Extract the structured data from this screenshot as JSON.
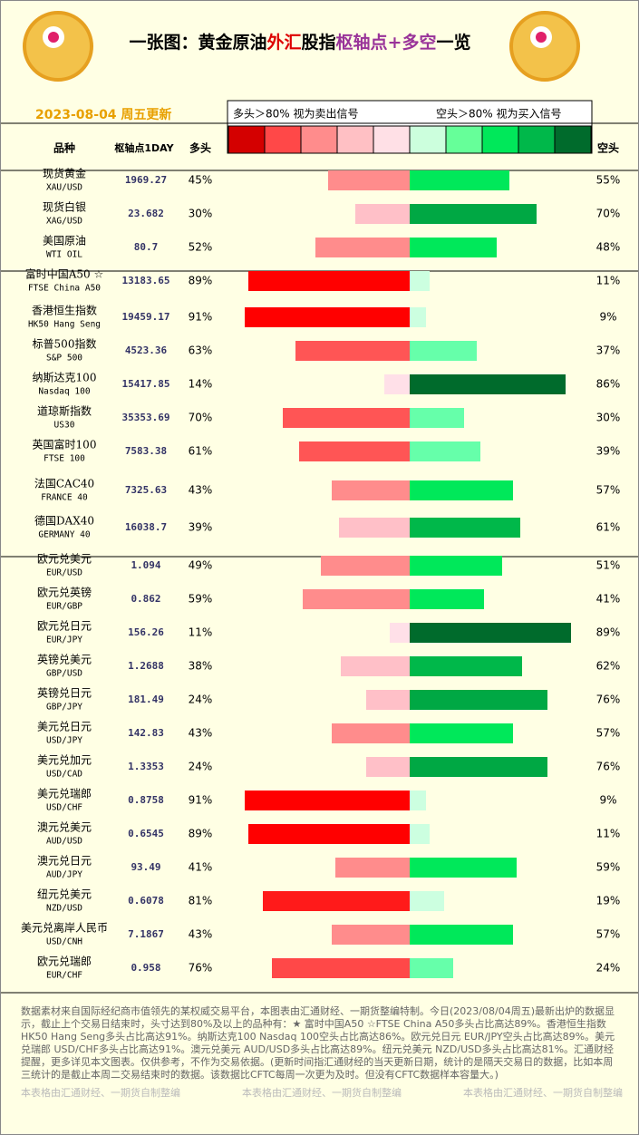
{
  "header": {
    "title_parts": [
      {
        "text": "一张图：黄金原油",
        "color": "#000000"
      },
      {
        "text": "外汇",
        "color": "#dd0000"
      },
      {
        "text": "股指",
        "color": "#000000"
      },
      {
        "text": "枢轴点+多空",
        "color": "#993399"
      },
      {
        "text": "一览",
        "color": "#000000"
      }
    ],
    "date": "2023-08-04 周五更新",
    "legend_long": "多头＞80% 视为卖出信号",
    "legend_short": "空头＞80% 视为买入信号",
    "legend_colors": [
      "#d40000",
      "#ff4848",
      "#ff8c8c",
      "#ffc0c4",
      "#ffe0e6",
      "#ccffdd",
      "#66ff99",
      "#00e85a",
      "#00b84a",
      "#006b2c"
    ],
    "col_name": "品种",
    "col_pivot": "枢轴点1DAY",
    "col_long": "多头",
    "col_short": "空头"
  },
  "rows": [
    {
      "name": "现货黄金",
      "code": "XAU/USD",
      "pivot": 1969.27,
      "long": 45,
      "long_label": "45%",
      "long_color": "#ff8c8c",
      "short": 55,
      "short_label": "55%",
      "short_color": "#00e85a"
    },
    {
      "name": "现货白银",
      "code": "XAG/USD",
      "pivot": 23.682,
      "long": 30,
      "long_label": "30%",
      "long_color": "#ffc0c8",
      "short": 70,
      "short_label": "70%",
      "short_color": "#00a844"
    },
    {
      "name": "美国原油",
      "code": "WTI OIL",
      "pivot": 80.7,
      "long": 52,
      "long_label": "52%",
      "long_color": "#ff8c8c",
      "short": 48,
      "short_label": "48%",
      "short_color": "#00e85a"
    },
    {
      "name": "富时中国A50 ☆",
      "code": "FTSE China A50",
      "pivot": 13183.65,
      "long": 89,
      "long_label": "89%",
      "long_color": "#ff0000",
      "short": 11,
      "short_label": "11%",
      "short_color": "#ccffe0"
    },
    {
      "name": "香港恒生指数",
      "code": "HK50 Hang Seng",
      "pivot": 19459.17,
      "long": 91,
      "long_label": "91%",
      "long_color": "#ff0000",
      "short": 9,
      "short_label": "9%",
      "short_color": "#ccffe0"
    },
    {
      "name": "标普500指数",
      "code": "S&P 500",
      "pivot": 4523.36,
      "long": 63,
      "long_label": "63%",
      "long_color": "#ff5555",
      "short": 37,
      "short_label": "37%",
      "short_color": "#66ffaa"
    },
    {
      "name": "纳斯达克100",
      "code": "Nasdaq 100",
      "pivot": 15417.85,
      "long": 14,
      "long_label": "14%",
      "long_color": "#ffe0e8",
      "short": 86,
      "short_label": "86%",
      "short_color": "#006b2c"
    },
    {
      "name": "道琼斯指数",
      "code": "US30",
      "pivot": 35353.69,
      "long": 70,
      "long_label": "70%",
      "long_color": "#ff5555",
      "short": 30,
      "short_label": "30%",
      "short_color": "#66ffaa"
    },
    {
      "name": "英国富时100",
      "code": "FTSE 100",
      "pivot": 7583.38,
      "long": 61,
      "long_label": "61%",
      "long_color": "#ff5555",
      "short": 39,
      "short_label": "39%",
      "short_color": "#66ffaa"
    },
    {
      "name": "法国CAC40",
      "code": "FRANCE 40",
      "pivot": 7325.63,
      "long": 43,
      "long_label": "43%",
      "long_color": "#ff8c8c",
      "short": 57,
      "short_label": "57%",
      "short_color": "#00e85a"
    },
    {
      "name": "德国DAX40",
      "code": "GERMANY 40",
      "pivot": 16038.7,
      "long": 39,
      "long_label": "39%",
      "long_color": "#ffc0c8",
      "short": 61,
      "short_label": "61%",
      "short_color": "#00b84a"
    },
    {
      "name": "欧元兑美元",
      "code": "EUR/USD",
      "pivot": 1.094,
      "long": 49,
      "long_label": "49%",
      "long_color": "#ff8c8c",
      "short": 51,
      "short_label": "51%",
      "short_color": "#00e85a"
    },
    {
      "name": "欧元兑英镑",
      "code": "EUR/GBP",
      "pivot": 0.862,
      "long": 59,
      "long_label": "59%",
      "long_color": "#ff8c8c",
      "short": 41,
      "short_label": "41%",
      "short_color": "#00e85a"
    },
    {
      "name": "欧元兑日元",
      "code": "EUR/JPY",
      "pivot": 156.26,
      "long": 11,
      "long_label": "11%",
      "long_color": "#ffe0e8",
      "short": 89,
      "short_label": "89%",
      "short_color": "#006b2c"
    },
    {
      "name": "英镑兑美元",
      "code": "GBP/USD",
      "pivot": 1.2688,
      "long": 38,
      "long_label": "38%",
      "long_color": "#ffc0c8",
      "short": 62,
      "short_label": "62%",
      "short_color": "#00b84a"
    },
    {
      "name": "英镑兑日元",
      "code": "GBP/JPY",
      "pivot": 181.49,
      "long": 24,
      "long_label": "24%",
      "long_color": "#ffc0c8",
      "short": 76,
      "short_label": "76%",
      "short_color": "#00a844"
    },
    {
      "name": "美元兑日元",
      "code": "USD/JPY",
      "pivot": 142.83,
      "long": 43,
      "long_label": "43%",
      "long_color": "#ff8c8c",
      "short": 57,
      "short_label": "57%",
      "short_color": "#00e85a"
    },
    {
      "name": "美元兑加元",
      "code": "USD/CAD",
      "pivot": 1.3353,
      "long": 24,
      "long_label": "24%",
      "long_color": "#ffc0c8",
      "short": 76,
      "short_label": "76%",
      "short_color": "#00a844"
    },
    {
      "name": "美元兑瑞郎",
      "code": "USD/CHF",
      "pivot": 0.8758,
      "long": 91,
      "long_label": "91%",
      "long_color": "#ff0000",
      "short": 9,
      "short_label": "9%",
      "short_color": "#ccffe0"
    },
    {
      "name": "澳元兑美元",
      "code": "AUD/USD",
      "pivot": 0.6545,
      "long": 89,
      "long_label": "89%",
      "long_color": "#ff0000",
      "short": 11,
      "short_label": "11%",
      "short_color": "#ccffe0"
    },
    {
      "name": "澳元兑日元",
      "code": "AUD/JPY",
      "pivot": 93.49,
      "long": 41,
      "long_label": "41%",
      "long_color": "#ff8c8c",
      "short": 59,
      "short_label": "59%",
      "short_color": "#00e85a"
    },
    {
      "name": "纽元兑美元",
      "code": "NZD/USD",
      "pivot": 0.6078,
      "long": 81,
      "long_label": "81%",
      "long_color": "#ff1a1a",
      "short": 19,
      "short_label": "19%",
      "short_color": "#ccffe0"
    },
    {
      "name": "美元兑离岸人民币",
      "code": "USD/CNH",
      "pivot": 7.1867,
      "long": 43,
      "long_label": "43%",
      "long_color": "#ff8c8c",
      "short": 57,
      "short_label": "57%",
      "short_color": "#00e85a"
    },
    {
      "name": "欧元兑瑞郎",
      "code": "EUR/CHF",
      "pivot": 0.958,
      "long": 76,
      "long_label": "76%",
      "long_color": "#ff4848",
      "short": 24,
      "short_label": "24%",
      "short_color": "#66ffaa"
    }
  ],
  "footer": {
    "note": "数据素材来自国际经纪商市值领先的某权威交易平台，本图表由汇通财经、一期货整编特制。今日(2023/08/04周五)最新出炉的数据显示，截止上个交易日结束时，头寸达到80%及以上的品种有：★ 富时中国A50 ☆FTSE China A50多头占比高达89%。香港恒生指数 HK50 Hang Seng多头占比高达91%。纳斯达克100 Nasdaq 100空头占比高达86%。欧元兑日元 EUR/JPY空头占比高达89%。美元兑瑞郎 USD/CHF多头占比高达91%。澳元兑美元 AUD/USD多头占比高达89%。纽元兑美元 NZD/USD多头占比高达81%。汇通财经提醒，更多详见本文图表。仅供参考，不作为交易依据。(更新时间指汇通财经的当天更新日期，统计的是隔天交易日的数据，比如本周三统计的是截止本周二交易结束时的数据。该数据比CFTC每周一次更为及时。但没有CFTC数据样本容量大。)",
    "credit": "本表格由汇通财经、一期货自制整编"
  }
}
